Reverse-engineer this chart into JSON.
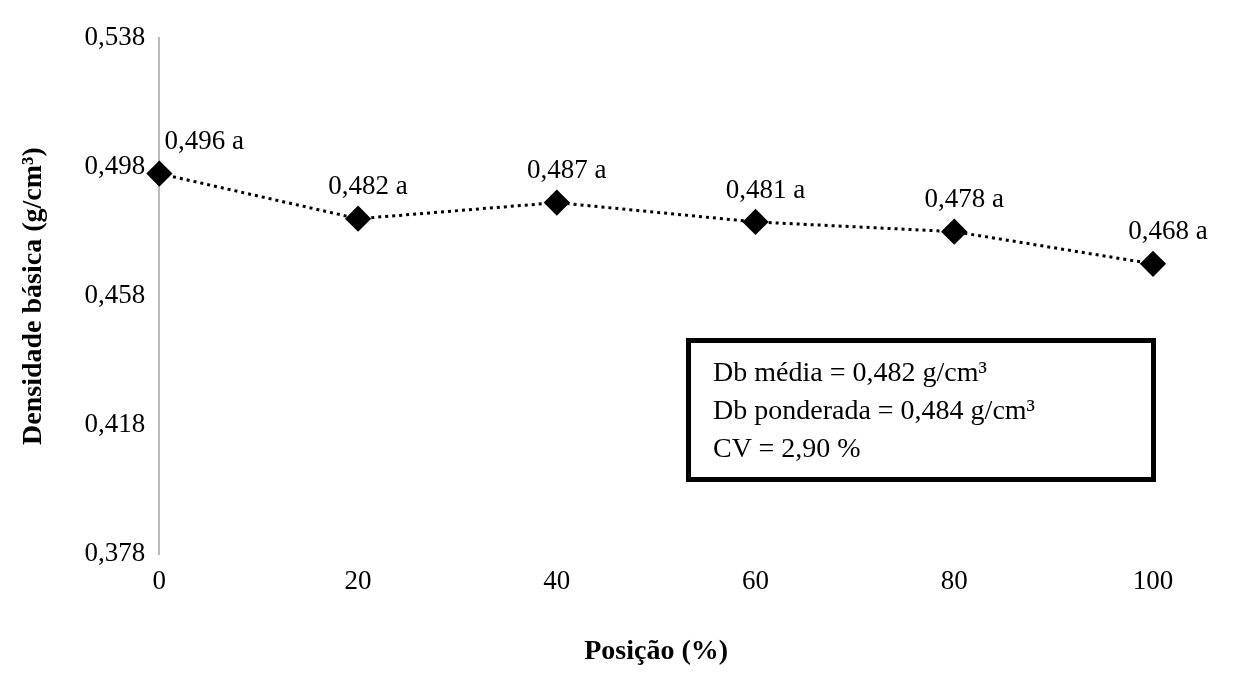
{
  "chart_data": {
    "type": "line",
    "xlabel": "Posição (%)",
    "ylabel": "Densidade básica (g/cm³)",
    "x": [
      0,
      20,
      40,
      60,
      80,
      100
    ],
    "series": [
      {
        "color": "#000000",
        "values": [
          0.496,
          0.482,
          0.487,
          0.481,
          0.478,
          0.468
        ],
        "value_labels": [
          "0,496 a",
          "0,482 a",
          "0,487 a",
          "0,481 a",
          "0,478 a",
          "0,468 a"
        ]
      }
    ],
    "xlim": [
      0,
      100
    ],
    "xticks": [
      0,
      20,
      40,
      60,
      80,
      100
    ],
    "ylim": [
      0.378,
      0.538
    ],
    "yticks": [
      {
        "value": 0.378,
        "label": "0,378"
      },
      {
        "value": 0.418,
        "label": "0,418"
      },
      {
        "value": 0.458,
        "label": "0,458"
      },
      {
        "value": 0.498,
        "label": "0,498"
      },
      {
        "value": 0.538,
        "label": "0,538"
      }
    ],
    "marker": "diamond",
    "line_style": "dotted",
    "grid": false,
    "legend": false,
    "annotations": [
      "Db média =  0,482 g/cm³",
      "Db ponderada =  0,484 g/cm³",
      "CV = 2,90 %"
    ]
  }
}
